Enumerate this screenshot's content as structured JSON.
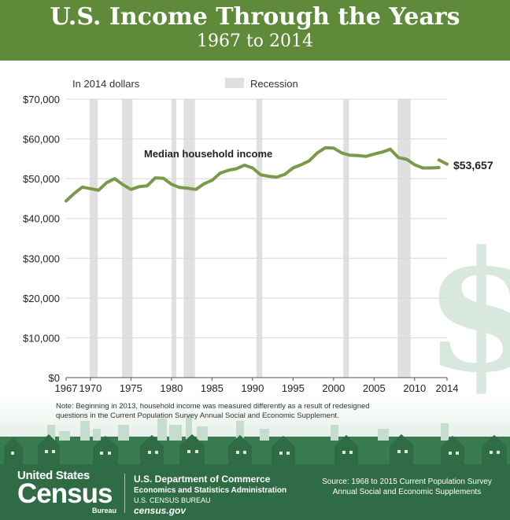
{
  "header": {
    "title": "U.S. Income Through the Years",
    "subtitle": "1967 to 2014"
  },
  "chart_data": {
    "type": "line",
    "title": "U.S. Income Through the Years",
    "subtitle": "1967 to 2014",
    "units_label": "In 2014 dollars",
    "legend": [
      {
        "label": "Recession",
        "color": "#e0e0e0"
      }
    ],
    "legend_position": "top",
    "ylim": [
      0,
      70000
    ],
    "xlim": [
      1967,
      2014
    ],
    "yticks": [
      0,
      10000,
      20000,
      30000,
      40000,
      50000,
      60000,
      70000
    ],
    "ytick_labels": [
      "$0",
      "$10,000",
      "$20,000",
      "$30,000",
      "$40,000",
      "$50,000",
      "$60,000",
      "$70,000"
    ],
    "xticks": [
      1967,
      1970,
      1975,
      1980,
      1985,
      1990,
      1995,
      2000,
      2005,
      2010,
      2014
    ],
    "xtick_labels": [
      "1967",
      "1970",
      "1975",
      "1980",
      "1985",
      "1990",
      "1995",
      "2000",
      "2005",
      "2010",
      "2014"
    ],
    "grid": true,
    "recessions": [
      [
        1969.9,
        1970.9
      ],
      [
        1973.9,
        1975.2
      ],
      [
        1980.0,
        1980.6
      ],
      [
        1981.5,
        1982.9
      ],
      [
        1990.5,
        1991.2
      ],
      [
        2001.2,
        2001.9
      ],
      [
        2007.9,
        2009.5
      ]
    ],
    "series": [
      {
        "name": "Median household income",
        "color": "#7a9a4a",
        "x": [
          1967,
          1968,
          1969,
          1970,
          1971,
          1972,
          1973,
          1974,
          1975,
          1976,
          1977,
          1978,
          1979,
          1980,
          1981,
          1982,
          1983,
          1984,
          1985,
          1986,
          1987,
          1988,
          1989,
          1990,
          1991,
          1992,
          1993,
          1994,
          1995,
          1996,
          1997,
          1998,
          1999,
          2000,
          2001,
          2002,
          2003,
          2004,
          2005,
          2006,
          2007,
          2008,
          2009,
          2010,
          2011,
          2012,
          2013
        ],
        "values": [
          44400,
          46300,
          47900,
          47500,
          47100,
          49000,
          50000,
          48500,
          47300,
          48000,
          48200,
          50200,
          50100,
          48600,
          47800,
          47600,
          47300,
          48700,
          49600,
          51400,
          52100,
          52500,
          53400,
          52700,
          51000,
          50600,
          50400,
          51100,
          52700,
          53500,
          54500,
          56500,
          57800,
          57700,
          56500,
          55900,
          55800,
          55600,
          56200,
          56700,
          57400,
          55300,
          54900,
          53500,
          52700,
          52700,
          52800
        ]
      },
      {
        "name": "",
        "color": "#7a9a4a",
        "x": [
          2013,
          2014
        ],
        "values": [
          54700,
          53657
        ]
      }
    ],
    "annotations": [
      {
        "text": "Median household income"
      },
      {
        "text": "$53,657"
      }
    ],
    "note": "Note: Beginning in 2013, household income was measured differently as a result of redesigned questions in the Current Population Survey Annual Social and Economic Supplement."
  },
  "chart_text": {
    "units_label": "In 2014 dollars",
    "legend_label": "Recession",
    "series_label": "Median household income",
    "end_value_label": "$53,657",
    "note_line1": "Note: Beginning in 2013, household income was measured differently as a result of redesigned",
    "note_line2": "questions in the Current Population Survey Annual Social and Economic Supplement."
  },
  "footer": {
    "logo_united_states": "United States",
    "logo_census": "Census",
    "logo_bureau": "Bureau",
    "dept_line1": "U.S. Department of Commerce",
    "dept_line2": "Economics and Statistics Administration",
    "dept_line3": "U.S. CENSUS BUREAU",
    "dept_line4": "census.gov",
    "source_line1": "Source: 1968 to 2015 Current Population Survey",
    "source_line2": "Annual Social and Economic Supplements"
  },
  "colors": {
    "header_bg": "#5f8a3a",
    "line": "#7a9a4a",
    "recession": "#e0e0e0",
    "footer_bg": "#2f6b45",
    "skyline": "#b9d4c3"
  }
}
